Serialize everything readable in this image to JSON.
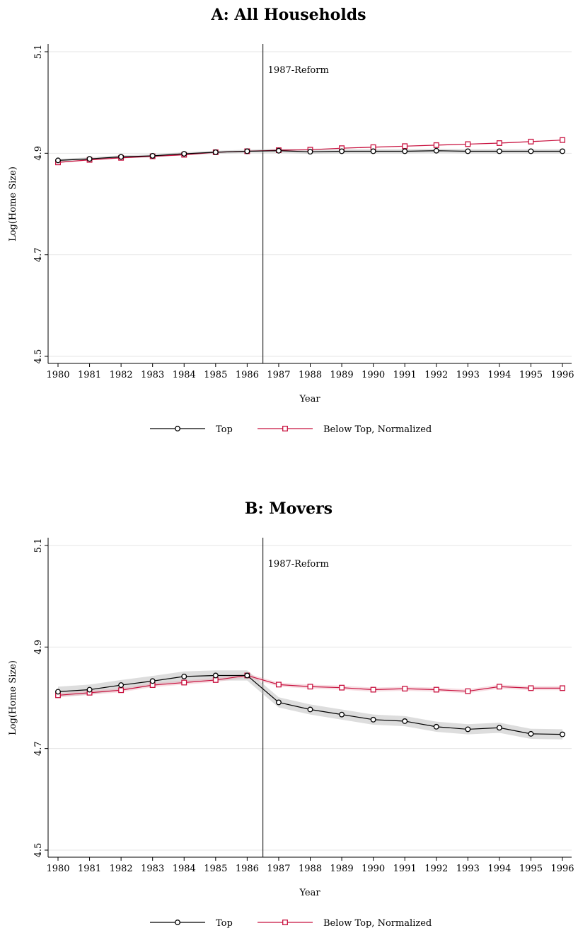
{
  "chart_data": [
    {
      "type": "line",
      "title": "A: All Households",
      "xlabel": "Year",
      "ylabel": "Log(Home Size)",
      "ylim": [
        4.5,
        5.1
      ],
      "yticks": [
        "4.5",
        "4.7",
        "4.9",
        "5.1"
      ],
      "categories": [
        "1980",
        "1981",
        "1982",
        "1983",
        "1984",
        "1985",
        "1986",
        "1987",
        "1988",
        "1989",
        "1990",
        "1991",
        "1992",
        "1993",
        "1994",
        "1995",
        "1996"
      ],
      "grid": true,
      "legend_position": "bottom",
      "annotation": {
        "x_between": [
          "1986",
          "1987"
        ],
        "label": "1987-Reform"
      },
      "series": [
        {
          "name": "Top",
          "marker": "circle",
          "color": "#000000",
          "values": [
            4.886,
            4.889,
            4.893,
            4.895,
            4.899,
            4.902,
            4.904,
            4.905,
            4.903,
            4.904,
            4.904,
            4.904,
            4.905,
            4.904,
            4.904,
            4.904,
            4.904
          ],
          "ci_halfwidth": [
            0.003,
            0.003,
            0.003,
            0.003,
            0.003,
            0.003,
            0.003,
            0.004,
            0.004,
            0.004,
            0.004,
            0.004,
            0.004,
            0.004,
            0.004,
            0.004,
            0.004
          ]
        },
        {
          "name": "Below Top, Normalized",
          "marker": "square",
          "color": "#c8103e",
          "values": [
            4.882,
            4.887,
            4.891,
            4.894,
            4.897,
            4.902,
            4.904,
            4.906,
            4.907,
            4.91,
            4.912,
            4.914,
            4.916,
            4.918,
            4.92,
            4.923,
            4.926
          ],
          "ci_halfwidth": [
            0.001,
            0.001,
            0.001,
            0.001,
            0.001,
            0.001,
            0.001,
            0.001,
            0.001,
            0.001,
            0.001,
            0.001,
            0.001,
            0.001,
            0.001,
            0.001,
            0.001
          ]
        }
      ]
    },
    {
      "type": "line",
      "title": "B: Movers",
      "xlabel": "Year",
      "ylabel": "Log(Home Size)",
      "ylim": [
        4.5,
        5.1
      ],
      "yticks": [
        "4.5",
        "4.7",
        "4.9",
        "5.1"
      ],
      "categories": [
        "1980",
        "1981",
        "1982",
        "1983",
        "1984",
        "1985",
        "1986",
        "1987",
        "1988",
        "1989",
        "1990",
        "1991",
        "1992",
        "1993",
        "1994",
        "1995",
        "1996"
      ],
      "grid": true,
      "legend_position": "bottom",
      "annotation": {
        "x_between": [
          "1986",
          "1987"
        ],
        "label": "1987-Reform"
      },
      "series": [
        {
          "name": "Top",
          "marker": "circle",
          "color": "#000000",
          "values": [
            4.812,
            4.816,
            4.825,
            4.833,
            4.842,
            4.844,
            4.844,
            4.791,
            4.777,
            4.767,
            4.757,
            4.754,
            4.743,
            4.738,
            4.741,
            4.729,
            4.728
          ],
          "ci_halfwidth": [
            0.01,
            0.01,
            0.01,
            0.01,
            0.01,
            0.01,
            0.01,
            0.01,
            0.01,
            0.01,
            0.01,
            0.01,
            0.01,
            0.01,
            0.01,
            0.01,
            0.01
          ]
        },
        {
          "name": "Below Top, Normalized",
          "marker": "square",
          "color": "#c8103e",
          "values": [
            4.805,
            4.81,
            4.815,
            4.825,
            4.83,
            4.835,
            4.844,
            4.826,
            4.822,
            4.82,
            4.816,
            4.818,
            4.816,
            4.813,
            4.822,
            4.819,
            4.819
          ],
          "ci_halfwidth": [
            0.004,
            0.004,
            0.004,
            0.004,
            0.004,
            0.004,
            0.004,
            0.004,
            0.004,
            0.004,
            0.004,
            0.004,
            0.004,
            0.004,
            0.004,
            0.004,
            0.004
          ]
        }
      ]
    }
  ]
}
